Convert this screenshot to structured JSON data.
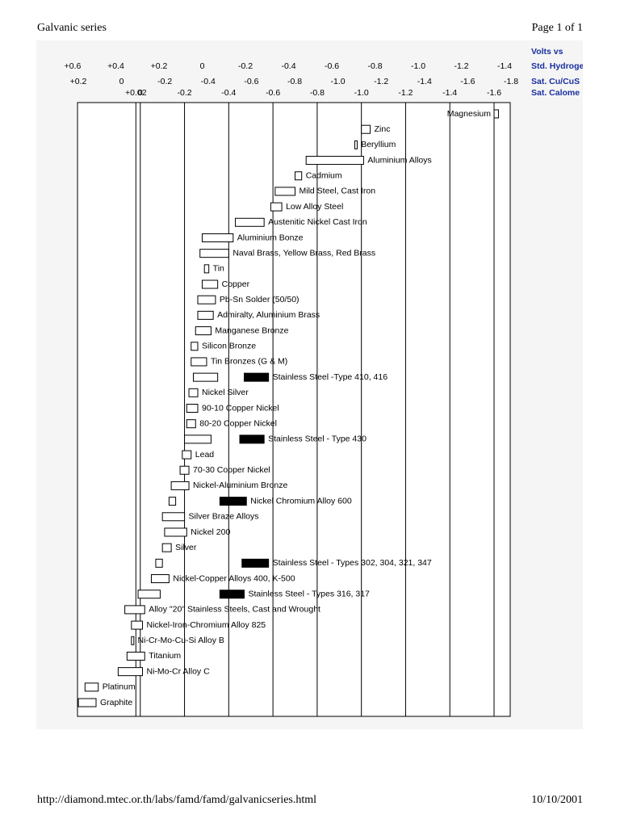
{
  "header": {
    "title": "Galvanic series",
    "page": "Page 1 of 1"
  },
  "footer": {
    "url": "http://diamond.mtec.or.th/labs/famd/famd/galvanicseries.html",
    "date": "10/10/2001"
  },
  "chart_data": {
    "type": "range-bar",
    "scale_caption": "Volts vs",
    "colors": {
      "passive": "#ffffff",
      "active": "#000000"
    },
    "grid": true,
    "scales": [
      {
        "name": "Std. Hydroge",
        "lim": [
          0.6,
          -1.4
        ],
        "ticks": [
          {
            "value": 0.6,
            "label": "+0.6"
          },
          {
            "value": 0.4,
            "label": "+0.4"
          },
          {
            "value": 0.2,
            "label": "+0.2"
          },
          0,
          -0.2,
          -0.4,
          -0.6,
          -0.8,
          {
            "value": -1.0,
            "label": "-1.0"
          },
          -1.2,
          -1.4
        ]
      },
      {
        "name": "Sat. Cu/CuS",
        "lim": [
          0.2,
          -1.8
        ],
        "ticks": [
          {
            "value": 0.2,
            "label": "+0.2"
          },
          0,
          -0.2,
          -0.4,
          -0.6,
          -0.8,
          {
            "value": -1.0,
            "label": "-1.0"
          },
          -1.2,
          -1.4,
          -1.6,
          -1.8
        ]
      },
      {
        "name": "Sat. Calome",
        "lim": [
          0.2,
          -1.6
        ],
        "ticks": [
          {
            "value": 0.02,
            "label": "+0.02"
          },
          0,
          -0.2,
          -0.4,
          -0.6,
          -0.8,
          {
            "value": -1.0,
            "label": "-1.0"
          },
          -1.2,
          -1.4,
          -1.6
        ]
      }
    ],
    "items": [
      {
        "name": "Magnesium",
        "values": [
          -1.6,
          -1.62
        ]
      },
      {
        "name": "Zinc",
        "values": [
          -1.0,
          -1.04
        ]
      },
      {
        "name": "Beryllium",
        "values": [
          -0.97,
          -0.98
        ]
      },
      {
        "name": "Aluminium Alloys",
        "values": [
          -0.75,
          -1.01
        ]
      },
      {
        "name": "Cadmium",
        "values": [
          -0.7,
          -0.73
        ]
      },
      {
        "name": "Mild Steel, Cast Iron",
        "values": [
          -0.61,
          -0.7
        ]
      },
      {
        "name": "Low Alloy Steel",
        "values": [
          -0.59,
          -0.64
        ]
      },
      {
        "name": "Austenitic Nickel Cast Iron",
        "values": [
          -0.43,
          -0.56
        ]
      },
      {
        "name": "Aluminium Bonze",
        "values": [
          -0.28,
          -0.42
        ]
      },
      {
        "name": "Naval Brass, Yellow Brass, Red Brass",
        "values": [
          -0.27,
          -0.4
        ]
      },
      {
        "name": "Tin",
        "values": [
          -0.29,
          -0.31
        ]
      },
      {
        "name": "Copper",
        "values": [
          -0.28,
          -0.35
        ]
      },
      {
        "name": "Pb-Sn Solder (50/50)",
        "values": [
          -0.26,
          -0.34
        ]
      },
      {
        "name": "Admiralty, Aluminium Brass",
        "values": [
          -0.26,
          -0.33
        ]
      },
      {
        "name": "Manganese Bronze",
        "values": [
          -0.25,
          -0.32
        ]
      },
      {
        "name": "Silicon Bronze",
        "values": [
          -0.23,
          -0.26
        ]
      },
      {
        "name": "Tin Bronzes (G & M)",
        "values": [
          -0.23,
          -0.3
        ]
      },
      {
        "name": "Stainless Steel -Type 410, 416",
        "values": [
          -0.24,
          -0.35
        ],
        "active": [
          -0.47,
          -0.58
        ]
      },
      {
        "name": "Nickel Silver",
        "values": [
          -0.22,
          -0.26
        ]
      },
      {
        "name": "90-10 Copper Nickel",
        "values": [
          -0.21,
          -0.26
        ]
      },
      {
        "name": "80-20 Copper Nickel",
        "values": [
          -0.21,
          -0.25
        ]
      },
      {
        "name": "Stainless Steel - Type 430",
        "values": [
          -0.2,
          -0.32
        ],
        "active": [
          -0.45,
          -0.56
        ]
      },
      {
        "name": "Lead",
        "values": [
          -0.19,
          -0.23
        ]
      },
      {
        "name": "70-30 Copper Nickel",
        "values": [
          -0.18,
          -0.22
        ]
      },
      {
        "name": "Nickel-Aluminium Bronze",
        "values": [
          -0.14,
          -0.22
        ]
      },
      {
        "name": "Nickel Chromium Alloy 600",
        "values": [
          -0.13,
          -0.16
        ],
        "active": [
          -0.36,
          -0.48
        ]
      },
      {
        "name": "Silver Braze Alloys",
        "values": [
          -0.1,
          -0.2
        ]
      },
      {
        "name": "Nickel 200",
        "values": [
          -0.11,
          -0.21
        ]
      },
      {
        "name": "Silver",
        "values": [
          -0.1,
          -0.14
        ]
      },
      {
        "name": "Stainless Steel - Types 302, 304, 321, 347",
        "values": [
          -0.07,
          -0.1
        ],
        "active": [
          -0.46,
          -0.58
        ]
      },
      {
        "name": "Nickel-Copper Alloys 400, K-500",
        "values": [
          -0.05,
          -0.13
        ]
      },
      {
        "name": "Stainless Steel - Types 316, 317",
        "values": [
          0.01,
          -0.09
        ],
        "active": [
          -0.36,
          -0.47
        ]
      },
      {
        "name": "Alloy \"20\" Stainless Steels, Cast and Wrought",
        "values": [
          0.07,
          -0.02
        ]
      },
      {
        "name": "Nickel-Iron-Chromium Alloy 825",
        "values": [
          0.04,
          -0.01
        ]
      },
      {
        "name": "Ni-Cr-Mo-Cu-Si Alloy B",
        "values": [
          0.04,
          0.03
        ]
      },
      {
        "name": "Titanium",
        "values": [
          0.06,
          -0.02
        ]
      },
      {
        "name": "Ni-Mo-Cr Alloy C",
        "values": [
          0.1,
          -0.01
        ]
      },
      {
        "name": "Platinum",
        "values": [
          0.25,
          0.19
        ]
      },
      {
        "name": "Graphite",
        "values": [
          0.28,
          0.2
        ]
      }
    ]
  }
}
